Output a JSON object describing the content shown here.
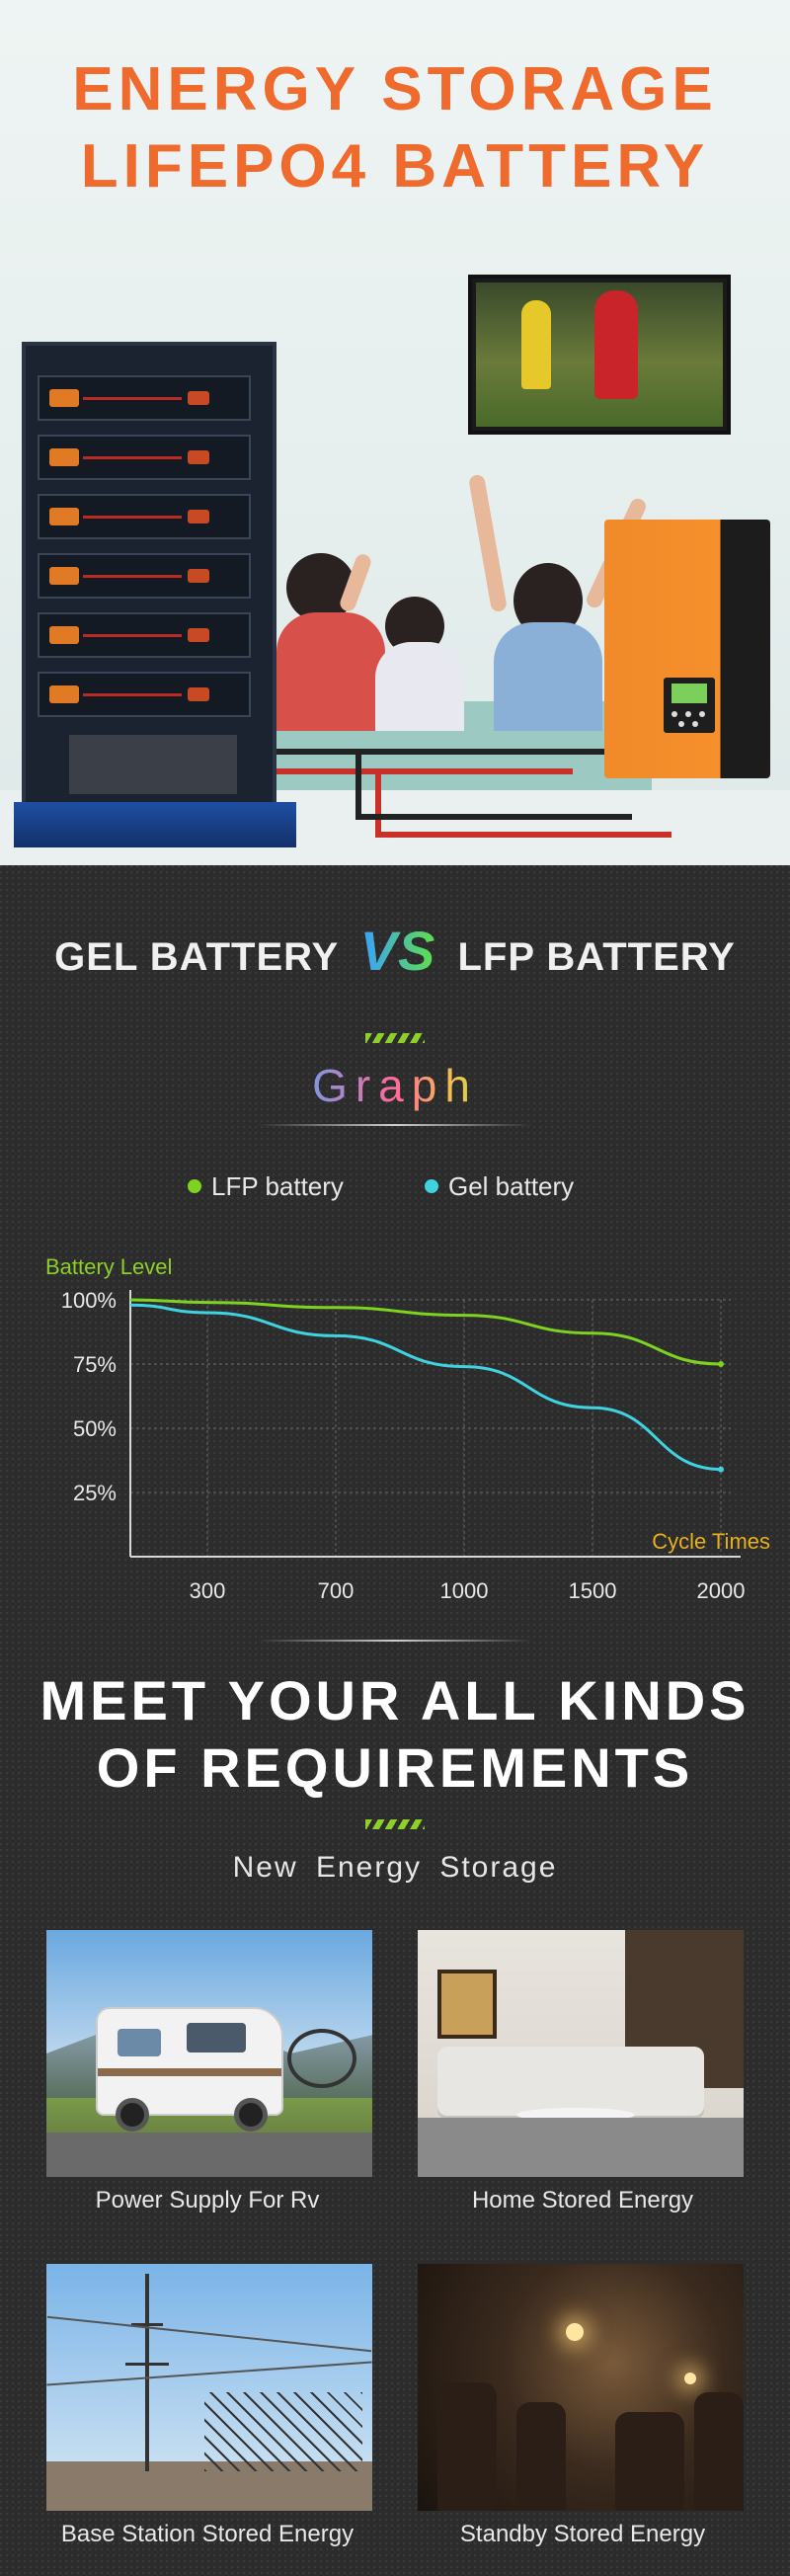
{
  "hero": {
    "title_line1": "ENERGY  STORAGE",
    "title_line2": "LIFEPO4  BATTERY"
  },
  "comparison": {
    "left": "GEL BATTERY",
    "vs": "VS",
    "right": "LFP BATTERY",
    "graph_title": "Graph",
    "legend": [
      {
        "label": "LFP battery",
        "color": "#7ed321"
      },
      {
        "label": "Gel battery",
        "color": "#3fd3e0"
      }
    ]
  },
  "chart_data": {
    "type": "line",
    "ylabel": "Battery Level",
    "xlabel": "Cycle Times",
    "x": [
      "300",
      "700",
      "1000",
      "1500",
      "2000"
    ],
    "y_ticks": [
      "100%",
      "75%",
      "50%",
      "25%"
    ],
    "ylim": [
      0,
      100
    ],
    "grid": true,
    "series": [
      {
        "name": "LFP battery",
        "color": "#7ed321",
        "values": [
          99,
          97,
          94,
          87,
          75
        ]
      },
      {
        "name": "Gel battery",
        "color": "#3fd3e0",
        "values": [
          95,
          86,
          74,
          58,
          34
        ]
      }
    ]
  },
  "requirements": {
    "title_line1": "MEET  YOUR  ALL  KINDS",
    "title_line2": "OF  REQUIREMENTS",
    "subtitle": "New Energy Storage",
    "items": [
      {
        "label": "Power Supply For Rv"
      },
      {
        "label": "Home Stored Energy"
      },
      {
        "label": "Base Station Stored Energy"
      },
      {
        "label": "Standby Stored Energy"
      }
    ]
  }
}
